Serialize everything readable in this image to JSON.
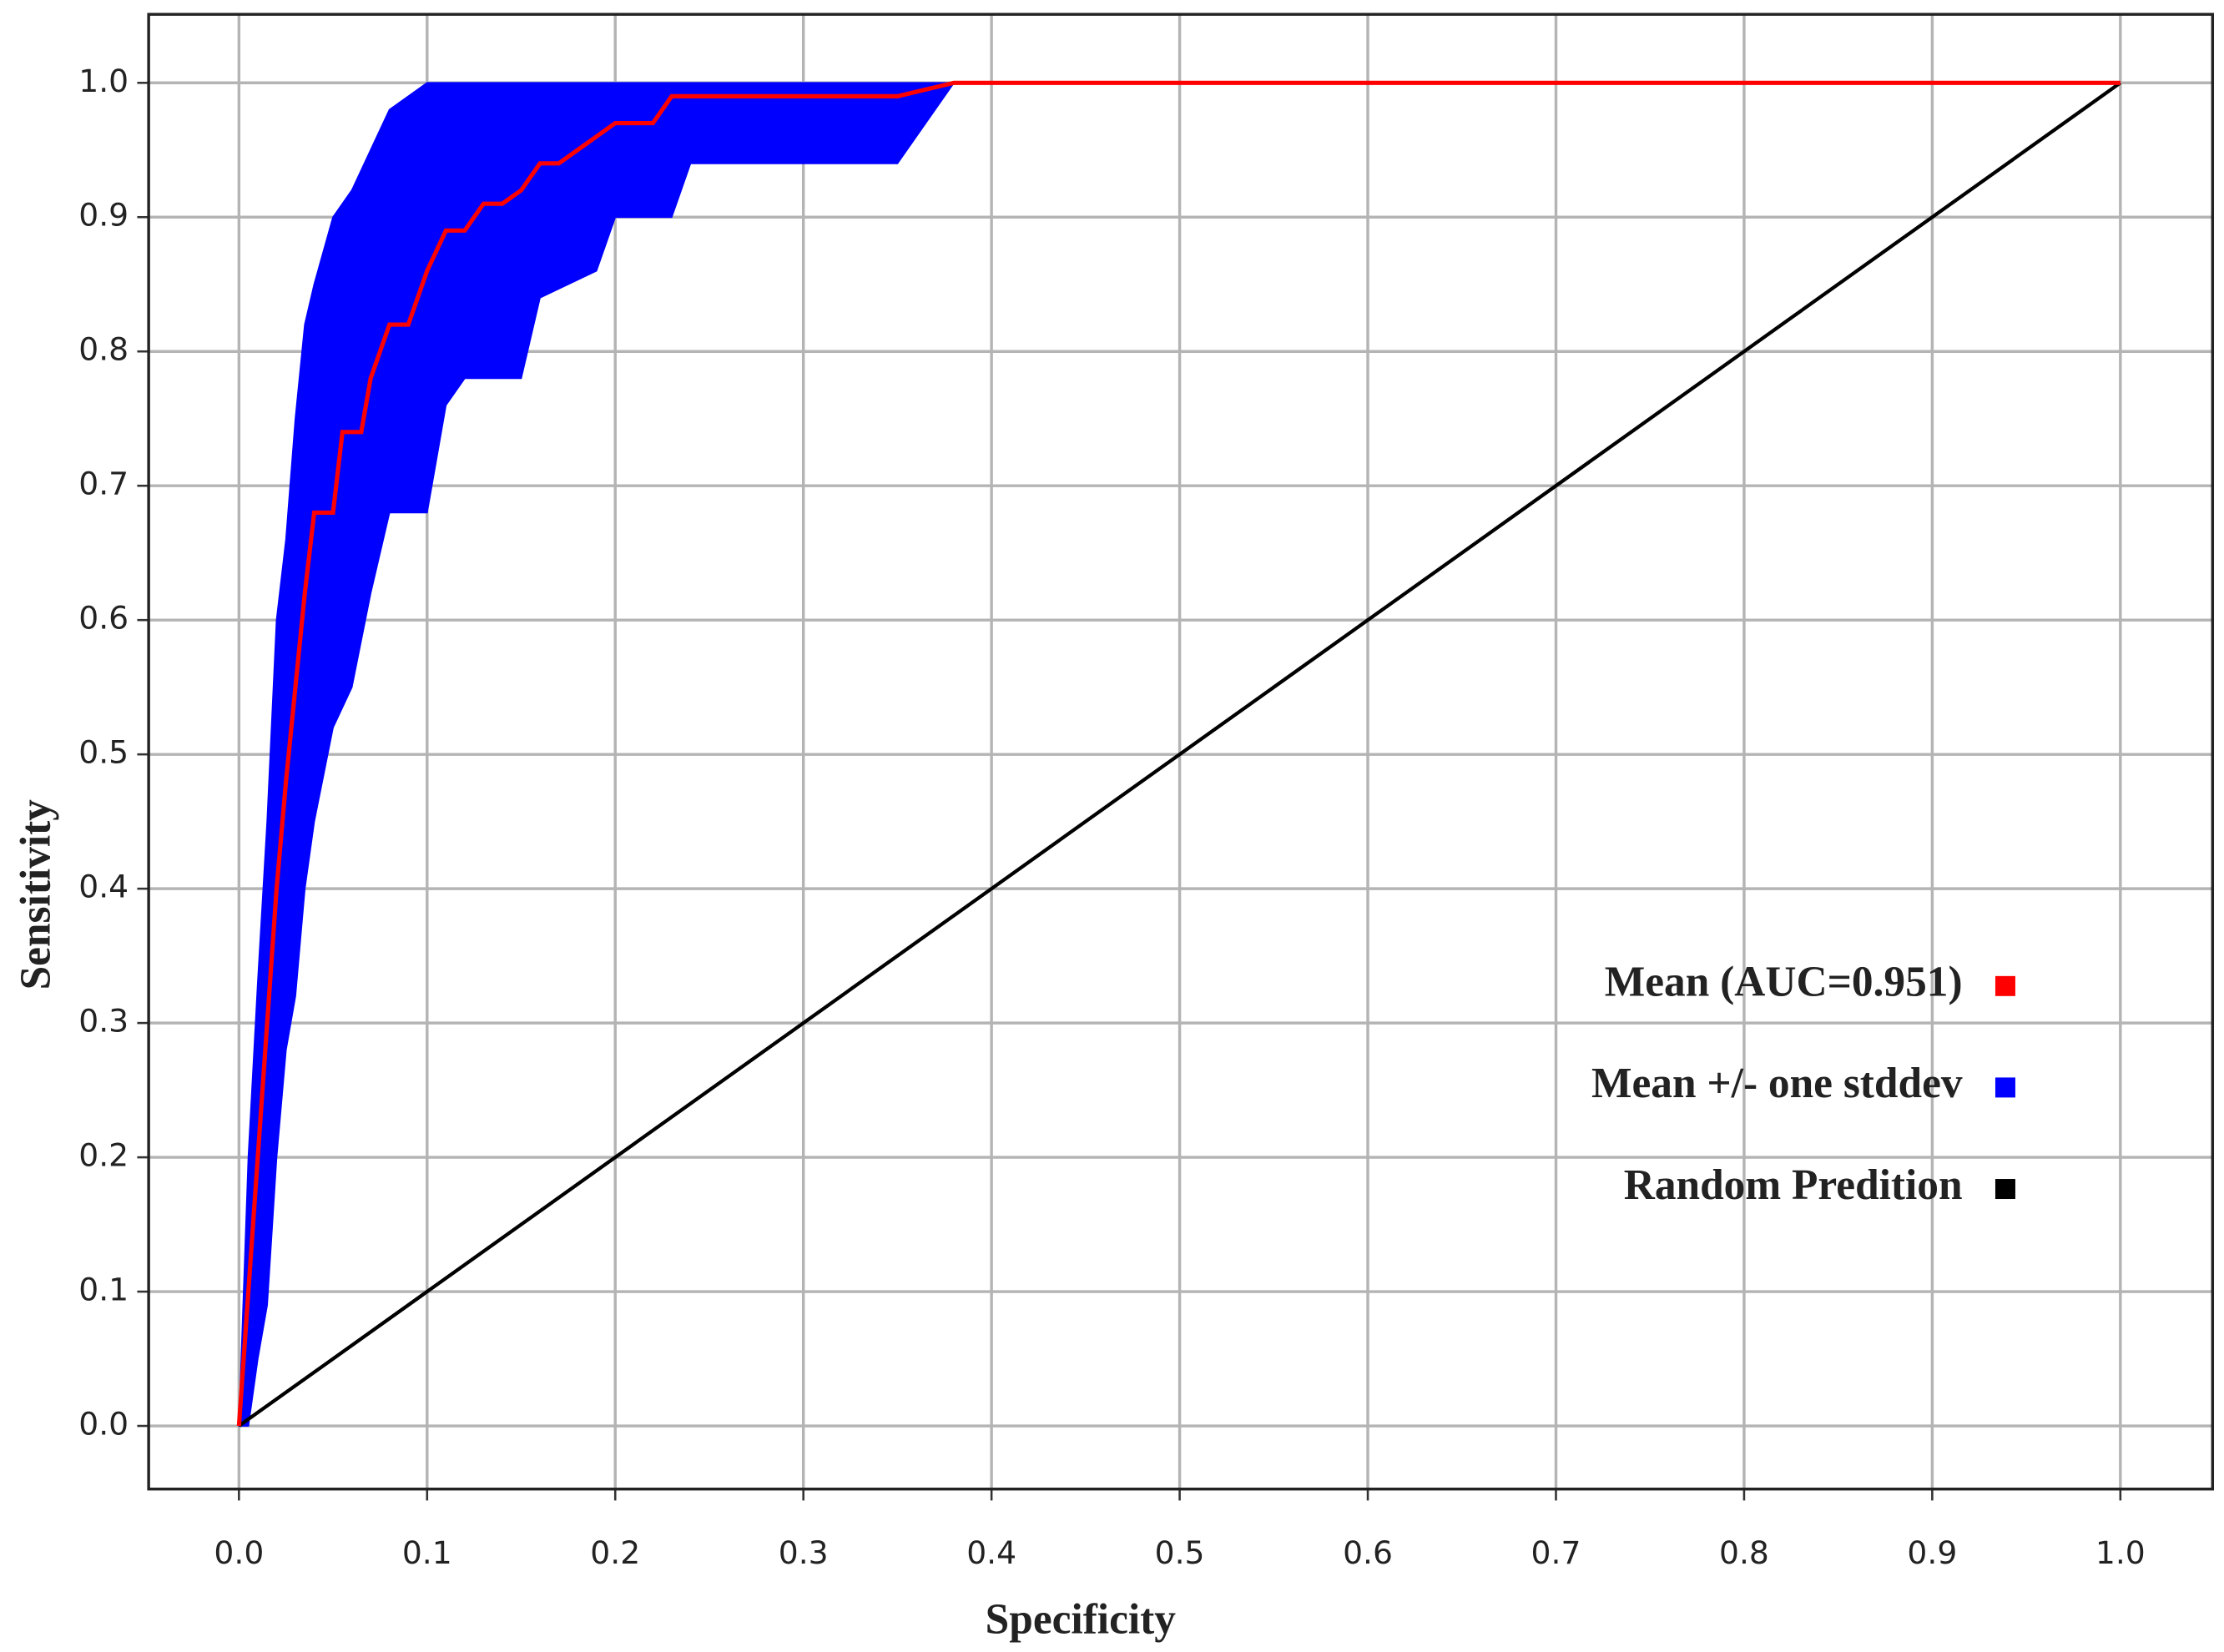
{
  "chart_data": {
    "type": "line",
    "x_label": "Specificity",
    "y_label": "Sensitivity",
    "xlim": [
      -0.048,
      1.049
    ],
    "ylim": [
      -0.047,
      1.051
    ],
    "xticks": [
      {
        "value": 0,
        "label": "0.0"
      },
      0.1,
      0.2,
      0.3,
      0.4,
      0.5,
      0.6,
      0.7,
      0.8,
      0.9,
      {
        "value": 1,
        "label": "1.0"
      }
    ],
    "yticks": [
      {
        "value": 0,
        "label": "0.0"
      },
      0.1,
      0.2,
      0.3,
      0.4,
      0.5,
      0.6,
      0.7,
      0.8,
      0.9,
      {
        "value": 1,
        "label": "1.0"
      }
    ],
    "grid": true,
    "legend": "center right",
    "series": [
      {
        "name": "Mean (AUC=0.951)",
        "color": "#ff0000",
        "x": [
          0,
          0.005,
          0.01,
          0.015,
          0.02,
          0.025,
          0.03,
          0.035,
          0.04,
          0.05,
          0.055,
          0.065,
          0.07,
          0.08,
          0.09,
          0.095,
          0.1,
          0.11,
          0.12,
          0.13,
          0.14,
          0.15,
          0.16,
          0.17,
          0.18,
          0.19,
          0.2,
          0.22,
          0.23,
          0.35,
          0.38,
          1.0
        ],
        "values": [
          0,
          0.1,
          0.2,
          0.3,
          0.4,
          0.48,
          0.55,
          0.62,
          0.68,
          0.68,
          0.74,
          0.74,
          0.78,
          0.82,
          0.82,
          0.84,
          0.86,
          0.89,
          0.89,
          0.91,
          0.91,
          0.92,
          0.94,
          0.94,
          0.95,
          0.96,
          0.97,
          0.97,
          0.99,
          0.99,
          1.0,
          1.0
        ]
      },
      {
        "name": "Mean +/- one stddev",
        "color": "#0000ff",
        "x": [
          0,
          0.005,
          0.01,
          0.015,
          0.02,
          0.025,
          0.03,
          0.035,
          0.04,
          0.05,
          0.06,
          0.07,
          0.08,
          0.1,
          0.11,
          0.12,
          0.15,
          0.16,
          0.19,
          0.2,
          0.23,
          0.24,
          0.35,
          0.38,
          1.0
        ],
        "upper": [
          0,
          0.2,
          0.33,
          0.45,
          0.6,
          0.66,
          0.75,
          0.82,
          0.85,
          0.9,
          0.92,
          0.95,
          0.98,
          1,
          1,
          1,
          1,
          1,
          1,
          1,
          1,
          1,
          1,
          1,
          1
        ],
        "lower": [
          0,
          0,
          0.05,
          0.09,
          0.2,
          0.28,
          0.32,
          0.4,
          0.45,
          0.52,
          0.55,
          0.62,
          0.68,
          0.68,
          0.76,
          0.78,
          0.78,
          0.84,
          0.86,
          0.9,
          0.9,
          0.94,
          0.94,
          1,
          1
        ]
      },
      {
        "name": "Random Predition",
        "color": "#000000",
        "x": [
          0,
          1
        ],
        "values": [
          0,
          1
        ]
      }
    ]
  }
}
